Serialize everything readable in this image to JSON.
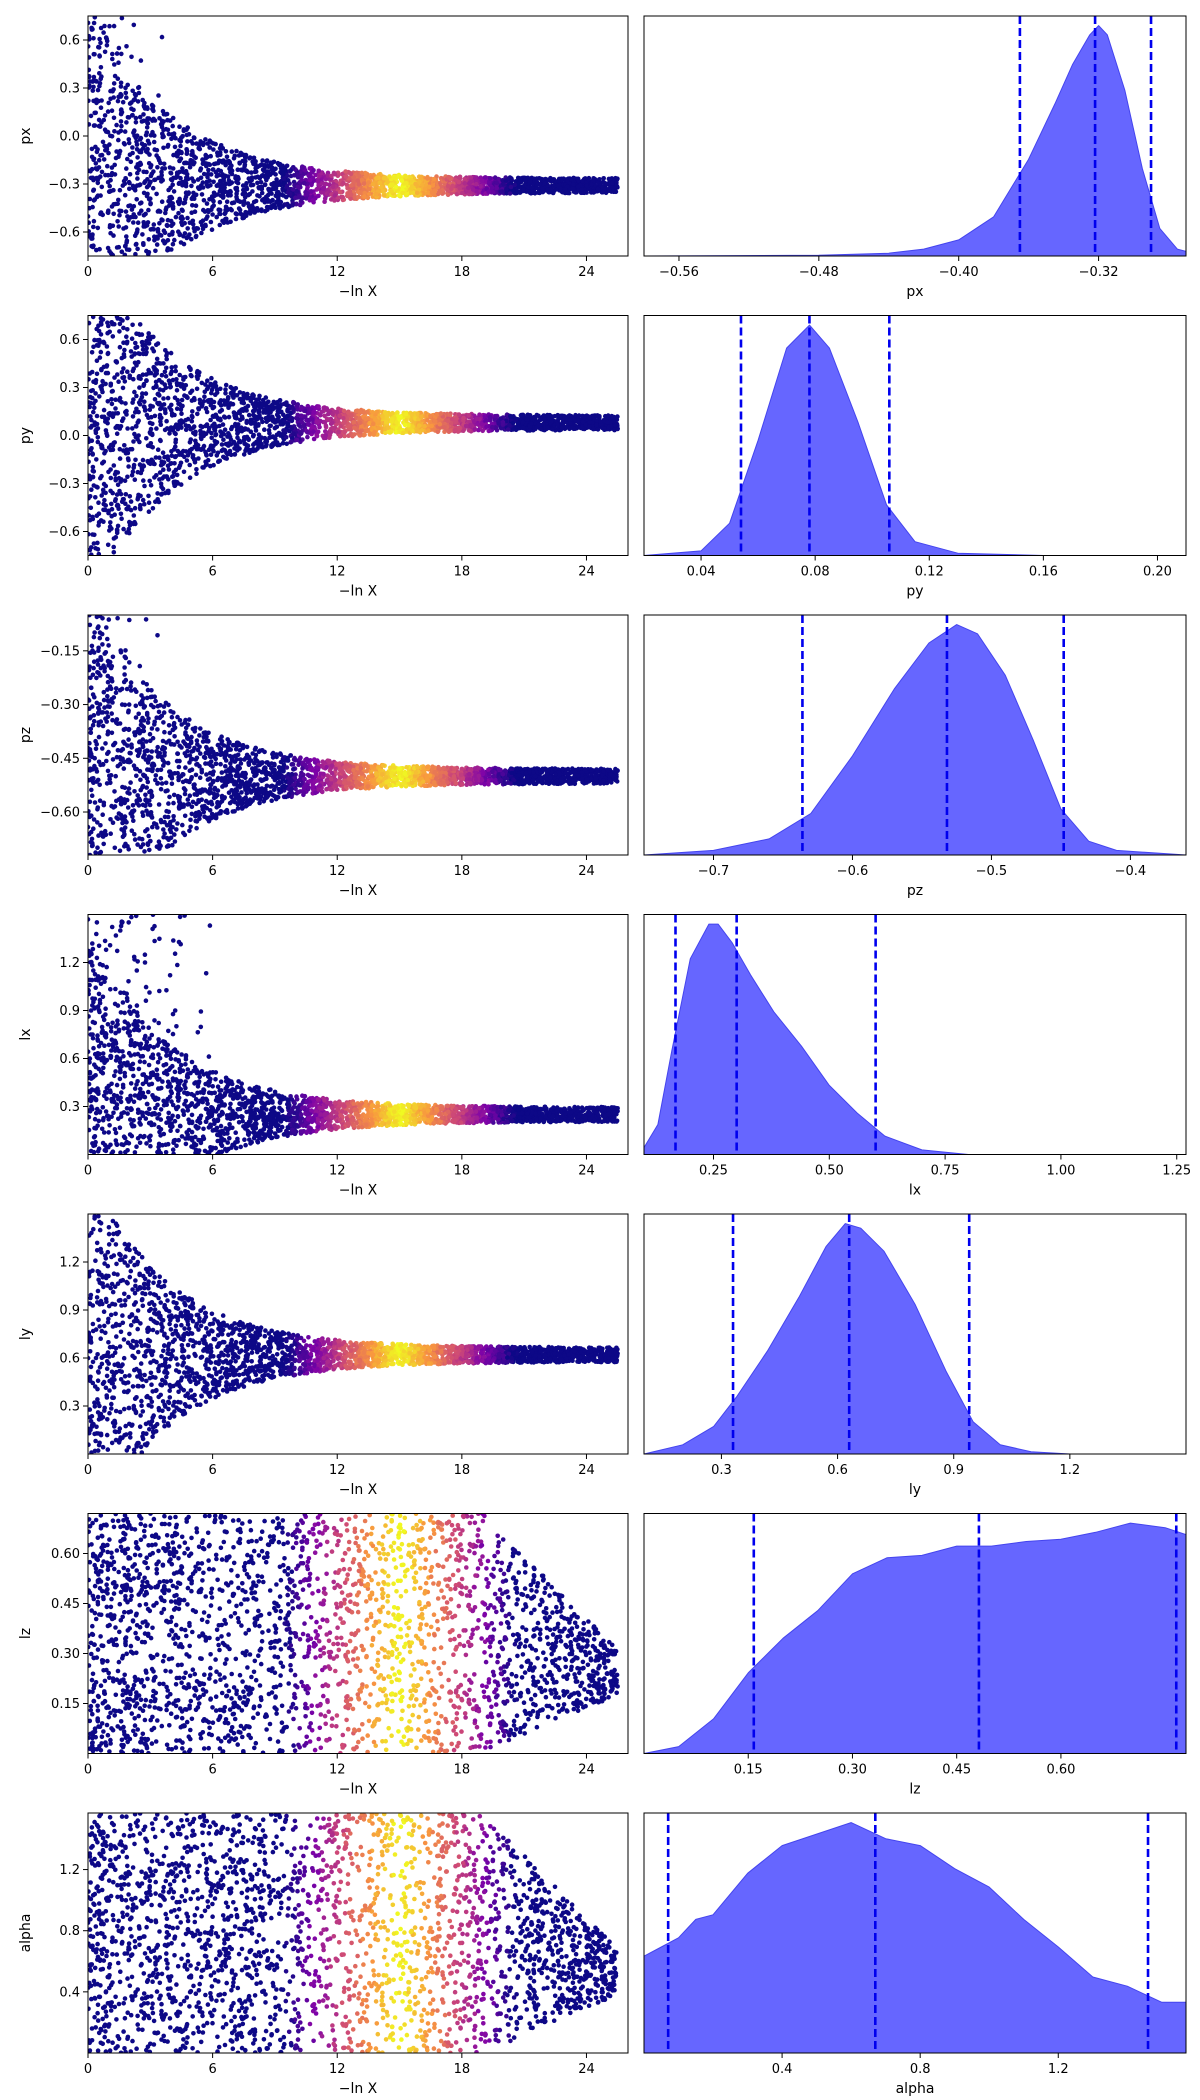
{
  "figure_title": "",
  "chart_data": [
    {
      "type": "scatter",
      "panel": "trace",
      "parameter": "px",
      "xlabel": "−ln X",
      "ylabel": "px",
      "xlim": [
        0,
        26
      ],
      "ylim": [
        -0.75,
        0.75
      ],
      "xticks": [
        0,
        6,
        12,
        18,
        24
      ],
      "yticks": [
        -0.6,
        -0.3,
        0.0,
        0.3,
        0.6
      ],
      "xtick_labels": [
        "0",
        "6",
        "12",
        "18",
        "24"
      ],
      "ytick_labels": [
        "−0.6",
        "−0.3",
        "0.0",
        "0.3",
        "0.6"
      ],
      "converged_value": -0.31,
      "colormap": "plasma",
      "color_peak_x": 15
    },
    {
      "type": "area",
      "panel": "posterior",
      "parameter": "px",
      "xlabel": "px",
      "xlim": [
        -0.58,
        -0.27
      ],
      "xticks": [
        -0.56,
        -0.48,
        -0.4,
        -0.32
      ],
      "xtick_labels": [
        "−0.56",
        "−0.48",
        "−0.40",
        "−0.32"
      ],
      "x": [
        -0.58,
        -0.48,
        -0.44,
        -0.42,
        -0.4,
        -0.38,
        -0.36,
        -0.345,
        -0.335,
        -0.325,
        -0.32,
        -0.315,
        -0.305,
        -0.295,
        -0.285,
        -0.275,
        -0.27
      ],
      "density": [
        0,
        0.003,
        0.012,
        0.03,
        0.07,
        0.17,
        0.42,
        0.66,
        0.83,
        0.96,
        1.0,
        0.96,
        0.72,
        0.38,
        0.12,
        0.03,
        0.02
      ],
      "quantile_lines": [
        -0.365,
        -0.322,
        -0.29
      ],
      "fill_color": "#6666ff",
      "line_color": "#0000ee"
    },
    {
      "type": "scatter",
      "panel": "trace",
      "parameter": "py",
      "xlabel": "−ln X",
      "ylabel": "py",
      "xlim": [
        0,
        26
      ],
      "ylim": [
        -0.75,
        0.75
      ],
      "xticks": [
        0,
        6,
        12,
        18,
        24
      ],
      "yticks": [
        -0.6,
        -0.3,
        0.0,
        0.3,
        0.6
      ],
      "xtick_labels": [
        "0",
        "6",
        "12",
        "18",
        "24"
      ],
      "ytick_labels": [
        "−0.6",
        "−0.3",
        "0.0",
        "0.3",
        "0.6"
      ],
      "converged_value": 0.08,
      "colormap": "plasma",
      "color_peak_x": 15
    },
    {
      "type": "area",
      "panel": "posterior",
      "parameter": "py",
      "xlabel": "py",
      "xlim": [
        0.02,
        0.21
      ],
      "xticks": [
        0.04,
        0.08,
        0.12,
        0.16,
        0.2
      ],
      "xtick_labels": [
        "0.04",
        "0.08",
        "0.12",
        "0.16",
        "0.20"
      ],
      "x": [
        0.02,
        0.04,
        0.05,
        0.06,
        0.07,
        0.078,
        0.085,
        0.095,
        0.105,
        0.115,
        0.13,
        0.16,
        0.21
      ],
      "density": [
        0,
        0.02,
        0.14,
        0.5,
        0.9,
        1.0,
        0.9,
        0.58,
        0.22,
        0.06,
        0.01,
        0,
        0
      ],
      "quantile_lines": [
        0.054,
        0.078,
        0.106
      ],
      "fill_color": "#6666ff",
      "line_color": "#0000ee"
    },
    {
      "type": "scatter",
      "panel": "trace",
      "parameter": "pz",
      "xlabel": "−ln X",
      "ylabel": "pz",
      "xlim": [
        0,
        26
      ],
      "ylim": [
        -0.72,
        -0.05
      ],
      "xticks": [
        0,
        6,
        12,
        18,
        24
      ],
      "yticks": [
        -0.6,
        -0.45,
        -0.3,
        -0.15
      ],
      "xtick_labels": [
        "0",
        "6",
        "12",
        "18",
        "24"
      ],
      "ytick_labels": [
        "−0.60",
        "−0.45",
        "−0.30",
        "−0.15"
      ],
      "converged_value": -0.5,
      "colormap": "plasma",
      "color_peak_x": 15
    },
    {
      "type": "area",
      "panel": "posterior",
      "parameter": "pz",
      "xlabel": "pz",
      "xlim": [
        -0.75,
        -0.36
      ],
      "xticks": [
        -0.7,
        -0.6,
        -0.5,
        -0.4
      ],
      "xtick_labels": [
        "−0.7",
        "−0.6",
        "−0.5",
        "−0.4"
      ],
      "x": [
        -0.75,
        -0.7,
        -0.66,
        -0.63,
        -0.6,
        -0.57,
        -0.545,
        -0.525,
        -0.51,
        -0.49,
        -0.47,
        -0.45,
        -0.43,
        -0.41,
        -0.36
      ],
      "density": [
        0,
        0.02,
        0.07,
        0.18,
        0.43,
        0.72,
        0.92,
        1.0,
        0.96,
        0.78,
        0.5,
        0.2,
        0.06,
        0.02,
        0
      ],
      "quantile_lines": [
        -0.636,
        -0.532,
        -0.448
      ],
      "fill_color": "#6666ff",
      "line_color": "#0000ee"
    },
    {
      "type": "scatter",
      "panel": "trace",
      "parameter": "lx",
      "xlabel": "−ln X",
      "ylabel": "lx",
      "xlim": [
        0,
        26
      ],
      "ylim": [
        0,
        1.5
      ],
      "xticks": [
        0,
        6,
        12,
        18,
        24
      ],
      "yticks": [
        0.3,
        0.6,
        0.9,
        1.2
      ],
      "xtick_labels": [
        "0",
        "6",
        "12",
        "18",
        "24"
      ],
      "ytick_labels": [
        "0.3",
        "0.6",
        "0.9",
        "1.2"
      ],
      "converged_value": 0.25,
      "colormap": "plasma",
      "color_peak_x": 15
    },
    {
      "type": "area",
      "panel": "posterior",
      "parameter": "lx",
      "xlabel": "lx",
      "xlim": [
        0.1,
        1.27
      ],
      "xticks": [
        0.25,
        0.5,
        0.75,
        1.0,
        1.25
      ],
      "xtick_labels": [
        "0.25",
        "0.50",
        "0.75",
        "1.00",
        "1.25"
      ],
      "x": [
        0.1,
        0.13,
        0.16,
        0.2,
        0.24,
        0.26,
        0.29,
        0.33,
        0.38,
        0.44,
        0.5,
        0.56,
        0.62,
        0.7,
        0.8,
        1.27
      ],
      "density": [
        0.03,
        0.13,
        0.45,
        0.85,
        1.0,
        1.0,
        0.92,
        0.78,
        0.62,
        0.47,
        0.3,
        0.18,
        0.08,
        0.02,
        0,
        0
      ],
      "quantile_lines": [
        0.168,
        0.3,
        0.6
      ],
      "fill_color": "#6666ff",
      "line_color": "#0000ee"
    },
    {
      "type": "scatter",
      "panel": "trace",
      "parameter": "ly",
      "xlabel": "−ln X",
      "ylabel": "ly",
      "xlim": [
        0,
        26
      ],
      "ylim": [
        0,
        1.5
      ],
      "xticks": [
        0,
        6,
        12,
        18,
        24
      ],
      "yticks": [
        0.3,
        0.6,
        0.9,
        1.2
      ],
      "xtick_labels": [
        "0",
        "6",
        "12",
        "18",
        "24"
      ],
      "ytick_labels": [
        "0.3",
        "0.6",
        "0.9",
        "1.2"
      ],
      "converged_value": 0.62,
      "colormap": "plasma",
      "color_peak_x": 15
    },
    {
      "type": "area",
      "panel": "posterior",
      "parameter": "ly",
      "xlabel": "ly",
      "xlim": [
        0.1,
        1.5
      ],
      "xticks": [
        0.3,
        0.6,
        0.9,
        1.2
      ],
      "xtick_labels": [
        "0.3",
        "0.6",
        "0.9",
        "1.2"
      ],
      "x": [
        0.1,
        0.2,
        0.28,
        0.34,
        0.42,
        0.5,
        0.57,
        0.62,
        0.66,
        0.72,
        0.8,
        0.88,
        0.95,
        1.02,
        1.1,
        1.2,
        1.5
      ],
      "density": [
        0,
        0.04,
        0.12,
        0.25,
        0.45,
        0.68,
        0.9,
        1.0,
        0.98,
        0.88,
        0.65,
        0.36,
        0.14,
        0.04,
        0.01,
        0,
        0
      ],
      "quantile_lines": [
        0.33,
        0.63,
        0.94
      ],
      "fill_color": "#6666ff",
      "line_color": "#0000ee"
    },
    {
      "type": "scatter",
      "panel": "trace",
      "parameter": "lz",
      "xlabel": "−ln X",
      "ylabel": "lz",
      "xlim": [
        0,
        26
      ],
      "ylim": [
        0,
        0.72
      ],
      "xticks": [
        0,
        6,
        12,
        18,
        24
      ],
      "yticks": [
        0.15,
        0.3,
        0.45,
        0.6
      ],
      "xtick_labels": [
        "0",
        "6",
        "12",
        "18",
        "24"
      ],
      "ytick_labels": [
        "0.15",
        "0.30",
        "0.45",
        "0.60"
      ],
      "converged_value": null,
      "colormap": "plasma",
      "color_peak_x": 15
    },
    {
      "type": "area",
      "panel": "posterior",
      "parameter": "lz",
      "xlabel": "lz",
      "xlim": [
        0.0,
        0.78
      ],
      "xticks": [
        0.15,
        0.3,
        0.45,
        0.6
      ],
      "xtick_labels": [
        "0.15",
        "0.30",
        "0.45",
        "0.60"
      ],
      "x": [
        0.0,
        0.05,
        0.1,
        0.15,
        0.2,
        0.25,
        0.3,
        0.35,
        0.4,
        0.45,
        0.5,
        0.55,
        0.6,
        0.65,
        0.7,
        0.75,
        0.78
      ],
      "density": [
        0,
        0.03,
        0.15,
        0.35,
        0.5,
        0.62,
        0.78,
        0.85,
        0.86,
        0.9,
        0.9,
        0.92,
        0.93,
        0.96,
        1.0,
        0.98,
        0.95
      ],
      "quantile_lines": [
        0.158,
        0.482,
        0.766
      ],
      "fill_color": "#6666ff",
      "line_color": "#0000ee"
    },
    {
      "type": "scatter",
      "panel": "trace",
      "parameter": "alpha",
      "xlabel": "−ln X",
      "ylabel": "alpha",
      "xlim": [
        0,
        26
      ],
      "ylim": [
        0,
        1.57
      ],
      "xticks": [
        0,
        6,
        12,
        18,
        24
      ],
      "yticks": [
        0.4,
        0.8,
        1.2
      ],
      "xtick_labels": [
        "0",
        "6",
        "12",
        "18",
        "24"
      ],
      "ytick_labels": [
        "0.4",
        "0.8",
        "1.2"
      ],
      "converged_value": null,
      "colormap": "plasma",
      "color_peak_x": 15
    },
    {
      "type": "area",
      "panel": "posterior",
      "parameter": "alpha",
      "xlabel": "alpha",
      "xlim": [
        0.0,
        1.57
      ],
      "xticks": [
        0.4,
        0.8,
        1.2
      ],
      "xtick_labels": [
        "0.4",
        "0.8",
        "1.2"
      ],
      "x": [
        0.0,
        0.05,
        0.1,
        0.15,
        0.2,
        0.3,
        0.4,
        0.5,
        0.6,
        0.7,
        0.8,
        0.9,
        1.0,
        1.1,
        1.2,
        1.3,
        1.4,
        1.5,
        1.57
      ],
      "density": [
        0.42,
        0.46,
        0.5,
        0.58,
        0.6,
        0.78,
        0.9,
        0.95,
        1.0,
        0.93,
        0.9,
        0.8,
        0.72,
        0.58,
        0.46,
        0.33,
        0.29,
        0.22,
        0.22
      ],
      "quantile_lines": [
        0.07,
        0.67,
        1.46
      ],
      "fill_color": "#6666ff",
      "line_color": "#0000ee"
    }
  ]
}
